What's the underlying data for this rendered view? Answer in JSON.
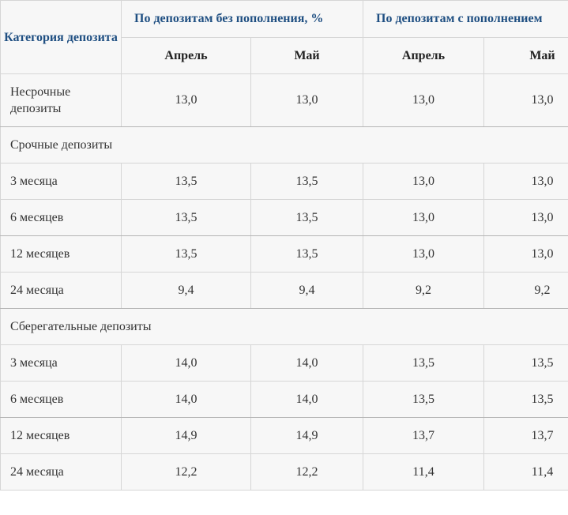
{
  "header": {
    "category": "Категория депозита",
    "group_without": "По депозитам без пополнения, %",
    "group_with": "По депозитам с пополнением",
    "month_april": "Апрель",
    "month_may": "Май"
  },
  "rows": {
    "demand": {
      "label": "Несрочные депозиты",
      "values": [
        "13,0",
        "13,0",
        "13,0",
        "13,0"
      ]
    },
    "term_section": "Срочные депозиты",
    "term": [
      {
        "label": "3 месяца",
        "values": [
          "13,5",
          "13,5",
          "13,0",
          "13,0"
        ]
      },
      {
        "label": "6 месяцев",
        "values": [
          "13,5",
          "13,5",
          "13,0",
          "13,0"
        ]
      },
      {
        "label": "12 месяцев",
        "values": [
          "13,5",
          "13,5",
          "13,0",
          "13,0"
        ]
      },
      {
        "label": "24 месяца",
        "values": [
          "9,4",
          "9,4",
          "9,2",
          "9,2"
        ]
      }
    ],
    "savings_section": "Сберегательные депозиты",
    "savings": [
      {
        "label": "3 месяца",
        "values": [
          "14,0",
          "14,0",
          "13,5",
          "13,5"
        ]
      },
      {
        "label": "6 месяцев",
        "values": [
          "14,0",
          "14,0",
          "13,5",
          "13,5"
        ]
      },
      {
        "label": "12 месяцев",
        "values": [
          "14,9",
          "14,9",
          "13,7",
          "13,7"
        ]
      },
      {
        "label": "24 месяца",
        "values": [
          "12,2",
          "12,2",
          "11,4",
          "11,4"
        ]
      }
    ]
  },
  "colors": {
    "header_text": "#1f4f82",
    "body_text": "#333333",
    "border": "#d6d6d6",
    "background": "#f7f7f7"
  }
}
